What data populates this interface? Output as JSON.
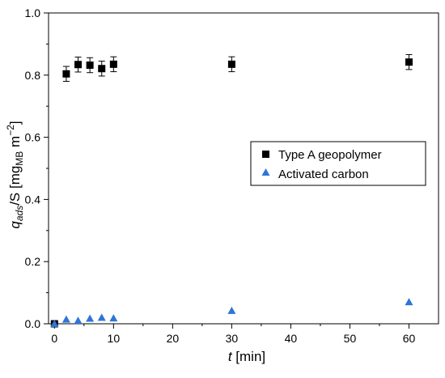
{
  "chart_data": {
    "type": "scatter",
    "xlabel": {
      "var": "t",
      "unit": " [min]"
    },
    "ylabel": {
      "var": "q",
      "sub": "ads",
      "mid": "/S [mg",
      "sub2": "MB",
      "mid2": " m",
      "sup": "−2",
      "end": "]"
    },
    "xlim": [
      -1,
      65
    ],
    "ylim": [
      0,
      1.0
    ],
    "x_ticks": [
      0,
      10,
      20,
      30,
      40,
      50,
      60
    ],
    "y_ticks": [
      "0.0",
      "0.2",
      "0.4",
      "0.6",
      "0.8",
      "1.0"
    ],
    "grid": false,
    "legend_position": "right-middle",
    "series": [
      {
        "name": "Type A geopolymer",
        "marker": "square",
        "color": "#000000",
        "x": [
          0,
          2,
          4,
          6,
          8,
          10,
          30,
          60
        ],
        "y": [
          0.0,
          0.804,
          0.834,
          0.832,
          0.821,
          0.835,
          0.835,
          0.842
        ],
        "err": [
          0,
          0.024,
          0.024,
          0.024,
          0.024,
          0.024,
          0.024,
          0.024
        ]
      },
      {
        "name": "Activated carbon",
        "marker": "triangle",
        "color": "#2e75d6",
        "x": [
          0,
          2,
          4,
          6,
          8,
          10,
          30,
          60
        ],
        "y": [
          0.0,
          0.014,
          0.01,
          0.017,
          0.02,
          0.018,
          0.042,
          0.07
        ],
        "err": [
          0,
          0,
          0,
          0,
          0,
          0,
          0,
          0
        ]
      }
    ]
  }
}
